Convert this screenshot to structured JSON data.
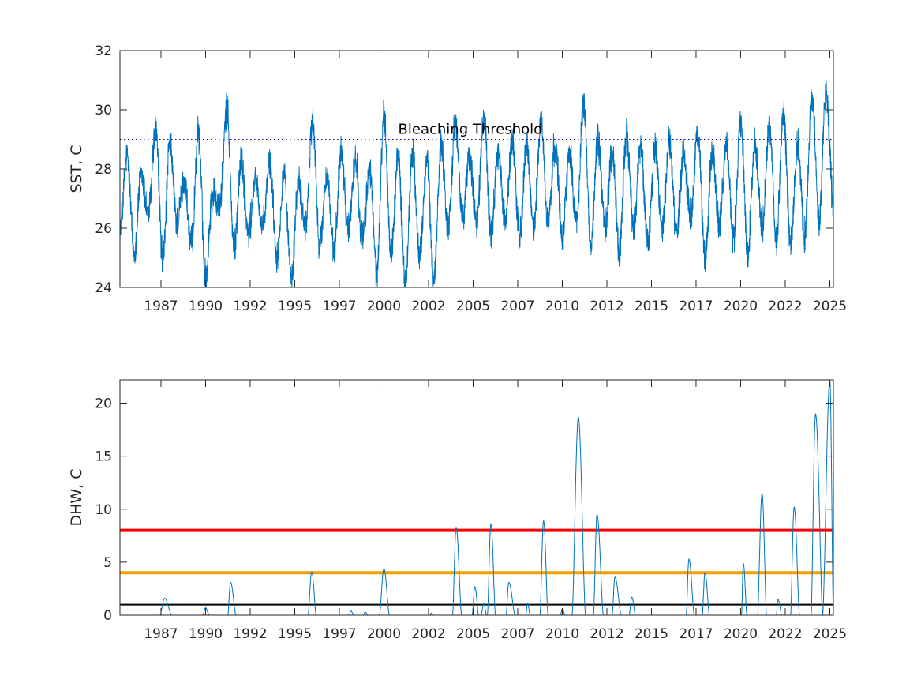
{
  "colors": {
    "series": "#0072bd",
    "axes": "#262626",
    "threshold_dotted": "#0000aa",
    "alert_red": "#ff0000",
    "alert_orange": "#f5a000",
    "alert_black": "#000000"
  },
  "chart_data": [
    {
      "type": "line",
      "ylabel": "SST, C",
      "ylim": [
        24,
        32
      ],
      "yticks": [
        24,
        26,
        28,
        30,
        32
      ],
      "xlim": [
        1985.2,
        2025.2
      ],
      "xtick_labels": [
        "1987",
        "1990",
        "1992",
        "1995",
        "1997",
        "2000",
        "2002",
        "2005",
        "2007",
        "2010",
        "2012",
        "2015",
        "2017",
        "2020",
        "2022",
        "2025"
      ],
      "xtick_positions": [
        1987.5,
        1990.0,
        1992.5,
        1995.0,
        1997.5,
        2000.0,
        2002.5,
        2005.0,
        2007.5,
        2010.0,
        2012.5,
        2015.0,
        2017.5,
        2020.0,
        2022.5,
        2025.0
      ],
      "grid": false,
      "threshold": {
        "value": 29.0,
        "style": "dotted",
        "label": "Bleaching Threshold",
        "label_x": 2000.8
      },
      "series": [
        {
          "x": [
            1985.2,
            1985.6,
            1986.0,
            1986.4,
            1986.8,
            1987.2,
            1987.6,
            1988.0,
            1988.4,
            1988.8,
            1989.2,
            1989.6,
            1990.0,
            1990.4,
            1990.8,
            1991.2,
            1991.6,
            1992.0,
            1992.4,
            1992.8,
            1993.2,
            1993.6,
            1994.0,
            1994.4,
            1994.8,
            1995.2,
            1995.6,
            1996.0,
            1996.4,
            1996.8,
            1997.2,
            1997.6,
            1998.0,
            1998.4,
            1998.8,
            1999.2,
            1999.6,
            2000.0,
            2000.4,
            2000.8,
            2001.2,
            2001.6,
            2002.0,
            2002.4,
            2002.8,
            2003.2,
            2003.6,
            2004.0,
            2004.4,
            2004.8,
            2005.2,
            2005.6,
            2006.0,
            2006.4,
            2006.8,
            2007.2,
            2007.6,
            2008.0,
            2008.4,
            2008.8,
            2009.2,
            2009.6,
            2010.0,
            2010.4,
            2010.8,
            2011.2,
            2011.6,
            2012.0,
            2012.4,
            2012.8,
            2013.2,
            2013.6,
            2014.0,
            2014.4,
            2014.8,
            2015.2,
            2015.6,
            2016.0,
            2016.4,
            2016.8,
            2017.2,
            2017.6,
            2018.0,
            2018.4,
            2018.8,
            2019.2,
            2019.6,
            2020.0,
            2020.4,
            2020.8,
            2021.2,
            2021.6,
            2022.0,
            2022.4,
            2022.8,
            2023.2,
            2023.6,
            2024.0,
            2024.4,
            2024.8,
            2025.2
          ],
          "y": [
            26.0,
            28.4,
            25.2,
            27.8,
            26.5,
            29.3,
            25.0,
            28.8,
            26.2,
            27.6,
            25.4,
            29.2,
            24.4,
            27.2,
            26.8,
            30.0,
            25.3,
            28.3,
            25.8,
            27.6,
            26.0,
            28.2,
            25.1,
            27.9,
            24.2,
            27.5,
            26.1,
            29.6,
            25.4,
            27.8,
            25.2,
            28.6,
            26.0,
            28.3,
            25.6,
            28.0,
            24.5,
            29.8,
            25.2,
            28.4,
            24.1,
            28.6,
            25.0,
            28.3,
            24.3,
            28.8,
            26.0,
            29.5,
            26.4,
            28.4,
            26.2,
            29.7,
            25.9,
            28.5,
            26.3,
            29.0,
            25.7,
            28.7,
            26.0,
            29.6,
            26.2,
            28.8,
            25.8,
            28.5,
            26.3,
            30.2,
            25.4,
            28.9,
            26.1,
            28.6,
            25.2,
            29.1,
            26.0,
            28.8,
            25.5,
            28.7,
            26.1,
            28.9,
            25.8,
            28.5,
            26.4,
            29.3,
            25.0,
            28.6,
            26.2,
            28.8,
            25.7,
            29.6,
            25.2,
            28.9,
            26.0,
            29.4,
            25.6,
            29.9,
            25.4,
            28.8,
            25.8,
            30.4,
            26.3,
            30.6,
            26.7
          ]
        }
      ]
    },
    {
      "type": "line",
      "ylabel": "DHW, C",
      "ylim": [
        0,
        22.2
      ],
      "yticks": [
        0,
        5,
        10,
        15,
        20
      ],
      "xlim": [
        1985.2,
        2025.2
      ],
      "xtick_labels": [
        "1987",
        "1990",
        "1992",
        "1995",
        "1997",
        "2000",
        "2002",
        "2005",
        "2007",
        "2010",
        "2012",
        "2015",
        "2017",
        "2020",
        "2022",
        "2025"
      ],
      "xtick_positions": [
        1987.5,
        1990.0,
        1992.5,
        1995.0,
        1997.5,
        2000.0,
        2002.5,
        2005.0,
        2007.5,
        2010.0,
        2012.5,
        2015.0,
        2017.5,
        2020.0,
        2022.5,
        2025.0
      ],
      "grid": false,
      "reference_lines": [
        {
          "value": 1,
          "color": "#000000"
        },
        {
          "value": 4,
          "color": "#f5a000"
        },
        {
          "value": 8,
          "color": "#ff0000"
        }
      ],
      "events": [
        {
          "start": 1987.45,
          "peak": 1987.7,
          "end": 1988.1,
          "value": 1.6
        },
        {
          "start": 1989.85,
          "peak": 1990.0,
          "end": 1990.2,
          "value": 0.7
        },
        {
          "start": 1991.25,
          "peak": 1991.4,
          "end": 1991.7,
          "value": 3.1
        },
        {
          "start": 1995.75,
          "peak": 1995.95,
          "end": 1996.2,
          "value": 4.1
        },
        {
          "start": 1998.05,
          "peak": 1998.15,
          "end": 1998.3,
          "value": 0.4
        },
        {
          "start": 1998.85,
          "peak": 1998.95,
          "end": 1999.1,
          "value": 0.3
        },
        {
          "start": 1999.75,
          "peak": 2000.0,
          "end": 2000.3,
          "value": 4.4
        },
        {
          "start": 2002.6,
          "peak": 2002.65,
          "end": 2002.75,
          "value": 0.2
        },
        {
          "start": 2003.85,
          "peak": 2004.05,
          "end": 2004.35,
          "value": 8.3
        },
        {
          "start": 2004.95,
          "peak": 2005.1,
          "end": 2005.3,
          "value": 2.7
        },
        {
          "start": 2005.45,
          "peak": 2005.6,
          "end": 2005.75,
          "value": 1.1
        },
        {
          "start": 2005.8,
          "peak": 2006.0,
          "end": 2006.25,
          "value": 8.6
        },
        {
          "start": 2006.85,
          "peak": 2007.0,
          "end": 2007.35,
          "value": 3.1
        },
        {
          "start": 2007.95,
          "peak": 2008.05,
          "end": 2008.2,
          "value": 1.1
        },
        {
          "start": 2008.75,
          "peak": 2008.95,
          "end": 2009.2,
          "value": 8.9
        },
        {
          "start": 2009.9,
          "peak": 2010.0,
          "end": 2010.15,
          "value": 0.6
        },
        {
          "start": 2010.55,
          "peak": 2010.9,
          "end": 2011.3,
          "value": 18.7
        },
        {
          "start": 2011.75,
          "peak": 2011.95,
          "end": 2012.3,
          "value": 9.5
        },
        {
          "start": 2012.8,
          "peak": 2012.95,
          "end": 2013.3,
          "value": 3.6
        },
        {
          "start": 2013.75,
          "peak": 2013.9,
          "end": 2014.1,
          "value": 1.7
        },
        {
          "start": 2016.95,
          "peak": 2017.1,
          "end": 2017.4,
          "value": 5.3
        },
        {
          "start": 2017.85,
          "peak": 2018.0,
          "end": 2018.25,
          "value": 4.0
        },
        {
          "start": 2020.05,
          "peak": 2020.15,
          "end": 2020.35,
          "value": 4.9
        },
        {
          "start": 2020.95,
          "peak": 2021.2,
          "end": 2021.45,
          "value": 11.5
        },
        {
          "start": 2022.0,
          "peak": 2022.1,
          "end": 2022.3,
          "value": 1.5
        },
        {
          "start": 2022.8,
          "peak": 2023.0,
          "end": 2023.3,
          "value": 10.2
        },
        {
          "start": 2023.95,
          "peak": 2024.2,
          "end": 2024.6,
          "value": 19.0
        },
        {
          "start": 2024.6,
          "peak": 2025.0,
          "end": 2025.2,
          "value": 22.2
        }
      ]
    }
  ]
}
